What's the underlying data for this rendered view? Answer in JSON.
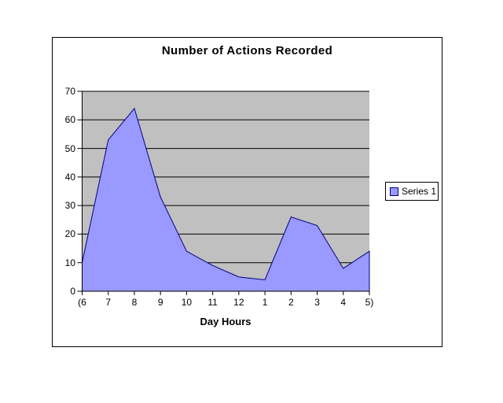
{
  "chart": {
    "colors": {
      "series_fill": "#9999FF",
      "series_line": "#000080",
      "plot_background": "#C0C0C0",
      "gridline": "#000000",
      "axis": "#000000",
      "chart_border": "#000000",
      "text": "#000000",
      "page_background": "#FFFFFF"
    }
  },
  "chart_data": {
    "type": "area",
    "title": "Number of Actions Recorded",
    "xlabel": "Day Hours",
    "ylabel": "",
    "categories": [
      "(6",
      "7",
      "8",
      "9",
      "10",
      "11",
      "12",
      "1",
      "2",
      "3",
      "4",
      "5)"
    ],
    "series": [
      {
        "name": "Series 1",
        "values": [
          10,
          53,
          64,
          33,
          14,
          9,
          5,
          4,
          26,
          23,
          8,
          14
        ]
      }
    ],
    "ylim": [
      0,
      70
    ],
    "y_ticks": [
      0,
      10,
      20,
      30,
      40,
      50,
      60,
      70
    ],
    "grid": true,
    "legend_position": "right"
  }
}
